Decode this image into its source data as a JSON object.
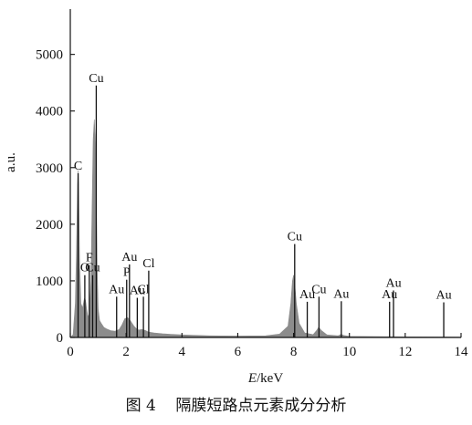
{
  "chart_data": {
    "type": "area",
    "title": "",
    "xlabel_italic": "E",
    "xlabel_unit": "/keV",
    "ylabel": "a.u.",
    "xlim": [
      0,
      14
    ],
    "ylim": [
      0,
      5800
    ],
    "x_ticks": [
      0,
      2,
      4,
      6,
      8,
      10,
      12,
      14
    ],
    "y_ticks": [
      0,
      1000,
      2000,
      3000,
      4000,
      5000
    ],
    "grid": false,
    "legend": "none",
    "fill_color": "#8c8c8c",
    "marker_color": "#111111",
    "series": [
      {
        "x": [
          0.0,
          0.1,
          0.18,
          0.22,
          0.26,
          0.28,
          0.3,
          0.33,
          0.38,
          0.44,
          0.5,
          0.52,
          0.55,
          0.58,
          0.62,
          0.66,
          0.7,
          0.74,
          0.78,
          0.82,
          0.86,
          0.9,
          0.93,
          0.96,
          1.0,
          1.05,
          1.12,
          1.2,
          1.3,
          1.45,
          1.6,
          1.75,
          1.85,
          1.95,
          2.05,
          2.12,
          2.2,
          2.28,
          2.36,
          2.45,
          2.55,
          2.62,
          2.7,
          2.8,
          3.0,
          3.3,
          3.6,
          4.0,
          5.0,
          6.0,
          7.0,
          7.5,
          7.8,
          7.9,
          7.96,
          8.0,
          8.04,
          8.1,
          8.2,
          8.4,
          8.7,
          8.82,
          8.9,
          9.0,
          9.2,
          9.6,
          9.7,
          9.8,
          10.0,
          11.0,
          12.0,
          13.0,
          14.0
        ],
        "y": [
          0,
          50,
          600,
          1500,
          2700,
          2950,
          2700,
          1400,
          600,
          520,
          680,
          700,
          640,
          520,
          400,
          360,
          520,
          1000,
          2300,
          3500,
          3850,
          3450,
          2500,
          1300,
          500,
          300,
          240,
          180,
          150,
          120,
          110,
          140,
          220,
          330,
          350,
          320,
          260,
          200,
          160,
          130,
          140,
          135,
          120,
          95,
          80,
          65,
          55,
          45,
          30,
          25,
          30,
          60,
          200,
          600,
          1000,
          1100,
          950,
          600,
          250,
          80,
          50,
          120,
          180,
          120,
          45,
          30,
          55,
          35,
          20,
          15,
          12,
          10,
          8
        ]
      }
    ],
    "peak_labels": [
      {
        "text": "C",
        "x": 0.28,
        "line_top": 2900,
        "line_bottom": 0
      },
      {
        "text": "O",
        "x": 0.52,
        "line_top": 1100,
        "line_bottom": 0
      },
      {
        "text": "F",
        "x": 0.68,
        "line_top": 1280,
        "line_bottom": 0
      },
      {
        "text": "Cu",
        "x": 0.93,
        "line_top": 4450,
        "line_bottom": 0
      },
      {
        "text": "Cu",
        "x": 0.8,
        "line_top": 1100,
        "line_bottom": 0
      },
      {
        "text": "Au",
        "x": 1.66,
        "line_top": 720,
        "line_bottom": 0
      },
      {
        "text": "P",
        "x": 2.02,
        "line_top": 1020,
        "line_bottom": 0
      },
      {
        "text": "Au",
        "x": 2.12,
        "line_top": 1290,
        "line_bottom": 0
      },
      {
        "text": "Au",
        "x": 2.4,
        "line_top": 700,
        "line_bottom": 0
      },
      {
        "text": "Cl",
        "x": 2.62,
        "line_top": 720,
        "line_bottom": 0
      },
      {
        "text": "Cl",
        "x": 2.81,
        "line_top": 1180,
        "line_bottom": 0
      },
      {
        "text": "Cu",
        "x": 8.04,
        "line_top": 1650,
        "line_bottom": 0
      },
      {
        "text": "Au",
        "x": 8.49,
        "line_top": 630,
        "line_bottom": 0
      },
      {
        "text": "Cu",
        "x": 8.91,
        "line_top": 720,
        "line_bottom": 0
      },
      {
        "text": "Au",
        "x": 9.71,
        "line_top": 640,
        "line_bottom": 0
      },
      {
        "text": "Au",
        "x": 11.44,
        "line_top": 630,
        "line_bottom": 0
      },
      {
        "text": "Au",
        "x": 11.58,
        "line_top": 830,
        "line_bottom": 0
      },
      {
        "text": "Au",
        "x": 13.38,
        "line_top": 620,
        "line_bottom": 0
      }
    ]
  },
  "caption": {
    "figure_no": "图 4",
    "text": "隔膜短路点元素成分分析"
  }
}
